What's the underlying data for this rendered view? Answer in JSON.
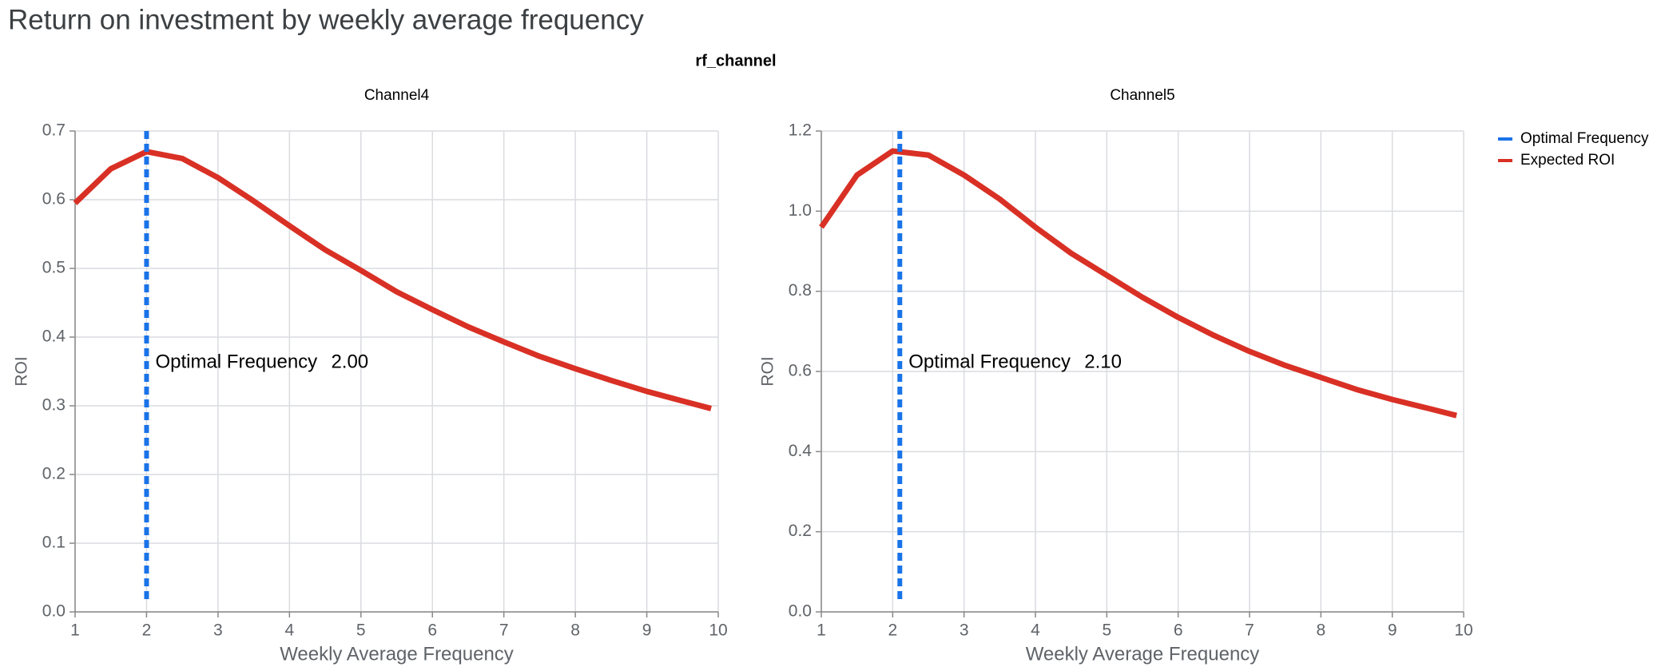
{
  "title": "Return on investment by weekly average frequency",
  "facet_label": "rf_channel",
  "chart_data": [
    {
      "type": "line",
      "title": "Channel4",
      "x_label": "Weekly Average Frequency",
      "y_label": "ROI",
      "x": [
        1,
        1.5,
        2,
        2.5,
        3,
        3.5,
        4,
        4.5,
        5,
        5.5,
        6,
        6.5,
        7,
        7.5,
        8,
        8.5,
        9,
        9.5,
        9.9
      ],
      "series": [
        {
          "name": "Expected ROI",
          "color": "#d93025",
          "values": [
            0.595,
            0.645,
            0.67,
            0.66,
            0.632,
            0.598,
            0.562,
            0.527,
            0.497,
            0.466,
            0.44,
            0.415,
            0.393,
            0.372,
            0.354,
            0.337,
            0.321,
            0.307,
            0.296
          ]
        }
      ],
      "rule": {
        "name": "Optimal Frequency",
        "color": "#1a73e8",
        "value": 2,
        "value_label": "2.00"
      },
      "xlim": [
        1,
        10
      ],
      "xticks": [
        1,
        2,
        3,
        4,
        5,
        6,
        7,
        8,
        9,
        10
      ],
      "ylim": [
        0,
        0.7
      ],
      "yticks": [
        {
          "value": 0,
          "label": "0.0"
        },
        0.1,
        0.2,
        0.3,
        0.4,
        0.5,
        0.6,
        0.7
      ],
      "grid": true
    },
    {
      "type": "line",
      "title": "Channel5",
      "x_label": "Weekly Average Frequency",
      "y_label": "ROI",
      "x": [
        1,
        1.5,
        2,
        2.5,
        3,
        3.5,
        4,
        4.5,
        5,
        5.5,
        6,
        6.5,
        7,
        7.5,
        8,
        8.5,
        9,
        9.5,
        9.9
      ],
      "series": [
        {
          "name": "Expected ROI",
          "color": "#d93025",
          "values": [
            0.96,
            1.09,
            1.15,
            1.14,
            1.09,
            1.03,
            0.96,
            0.895,
            0.84,
            0.785,
            0.735,
            0.69,
            0.65,
            0.615,
            0.585,
            0.555,
            0.53,
            0.508,
            0.49
          ]
        }
      ],
      "rule": {
        "name": "Optimal Frequency",
        "color": "#1a73e8",
        "value": 2.1,
        "value_label": "2.10"
      },
      "xlim": [
        1,
        10
      ],
      "xticks": [
        1,
        2,
        3,
        4,
        5,
        6,
        7,
        8,
        9,
        10
      ],
      "ylim": [
        0,
        1.2
      ],
      "yticks": [
        {
          "value": 0,
          "label": "0.0"
        },
        0.2,
        0.4,
        0.6,
        0.8,
        {
          "value": 1,
          "label": "1.0"
        },
        1.2
      ],
      "grid": true
    }
  ]
}
